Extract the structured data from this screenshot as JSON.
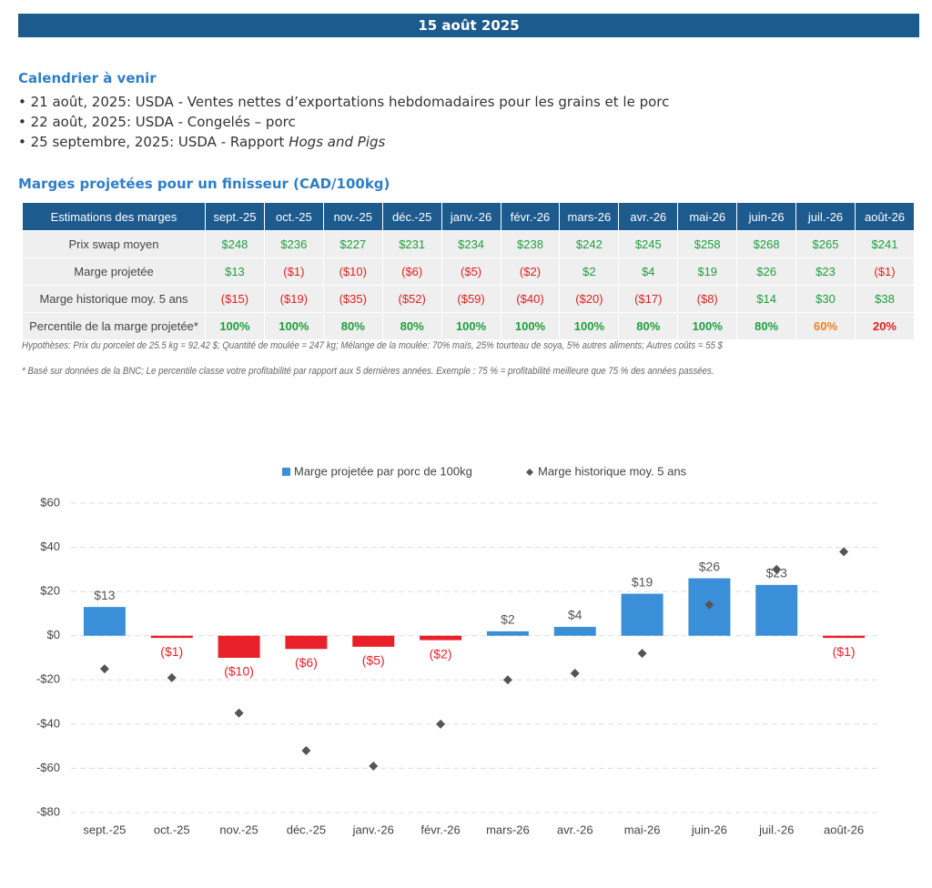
{
  "header": {
    "date": "15 août 2025"
  },
  "calendar": {
    "title": "Calendrier à venir",
    "items": [
      {
        "text": "21 août, 2025: USDA - Ventes nettes d’exportations hebdomadaires pour les grains et le porc"
      },
      {
        "text": "22 août, 2025: USDA - Congelés – porc"
      },
      {
        "text": "25 septembre, 2025: USDA - Rapport ",
        "italic": "Hogs and Pigs"
      }
    ]
  },
  "table": {
    "title": "Marges projetées pour un finisseur (CAD/100kg)",
    "header": [
      "Estimations des marges",
      "sept.-25",
      "oct.-25",
      "nov.-25",
      "déc.-25",
      "janv.-26",
      "févr.-26",
      "mars-26",
      "avr.-26",
      "mai-26",
      "juin-26",
      "juil.-26",
      "août-26"
    ],
    "rows": [
      [
        "Prix swap moyen",
        "$248",
        "$236",
        "$227",
        "$231",
        "$234",
        "$238",
        "$242",
        "$245",
        "$258",
        "$268",
        "$265",
        "$241"
      ],
      [
        "Marge projetée",
        "$13",
        "($1)",
        "($10)",
        "($6)",
        "($5)",
        "($2)",
        "$2",
        "$4",
        "$19",
        "$26",
        "$23",
        "($1)"
      ],
      [
        "Marge historique moy. 5 ans",
        "($15)",
        "($19)",
        "($35)",
        "($52)",
        "($59)",
        "($40)",
        "($20)",
        "($17)",
        "($8)",
        "$14",
        "$30",
        "$38"
      ],
      [
        "Percentile de la marge projetée*",
        "100%",
        "100%",
        "80%",
        "80%",
        "100%",
        "100%",
        "100%",
        "80%",
        "100%",
        "80%",
        "60%",
        "20%"
      ]
    ],
    "colors": [
      [
        "#1e9e3e",
        "#1e9e3e",
        "#1e9e3e",
        "#1e9e3e",
        "#1e9e3e",
        "#1e9e3e",
        "#1e9e3e",
        "#1e9e3e",
        "#1e9e3e",
        "#1e9e3e",
        "#1e9e3e",
        "#1e9e3e"
      ],
      [
        "#1e9e3e",
        "#e02020",
        "#e02020",
        "#e02020",
        "#e02020",
        "#e02020",
        "#1e9e3e",
        "#1e9e3e",
        "#1e9e3e",
        "#1e9e3e",
        "#1e9e3e",
        "#e02020"
      ],
      [
        "#e02020",
        "#e02020",
        "#e02020",
        "#e02020",
        "#e02020",
        "#e02020",
        "#e02020",
        "#e02020",
        "#e02020",
        "#1e9e3e",
        "#1e9e3e",
        "#1e9e3e"
      ],
      [
        "#1e9e3e",
        "#1e9e3e",
        "#1e9e3e",
        "#1e9e3e",
        "#1e9e3e",
        "#1e9e3e",
        "#1e9e3e",
        "#1e9e3e",
        "#1e9e3e",
        "#1e9e3e",
        "#f08020",
        "#e02020"
      ]
    ]
  },
  "notes": [
    "Hypothèses: Prix du porcelet de 25.5 kg = 92.42 $; Quantité de moulée = 247 kg; Mélange de la moulée: 70% maïs, 25% tourteau de soya, 5% autres aliments; Autres coûts = 55 $",
    "* Basé sur données de la BNC; Le percentile classe votre profitabilité par rapport aux 5 dernières années. Exemple : 75 % = profitabilité meilleure que 75 % des années passées."
  ],
  "chart_data": {
    "type": "bar",
    "categories": [
      "sept.-25",
      "oct.-25",
      "nov.-25",
      "déc.-25",
      "janv.-26",
      "févr.-26",
      "mars-26",
      "avr.-26",
      "mai-26",
      "juin-26",
      "juil.-26",
      "août-26"
    ],
    "series": [
      {
        "name": "Marge projetée par porc de 100kg",
        "type": "bar",
        "color": "#3a8fd8",
        "negative_color": "#e8202a",
        "values": [
          13,
          -1,
          -10,
          -6,
          -5,
          -2,
          2,
          4,
          19,
          26,
          23,
          -1
        ],
        "value_labels": [
          "$13",
          "($1)",
          "($10)",
          "($6)",
          "($5)",
          "($2)",
          "$2",
          "$4",
          "$19",
          "$26",
          "$23",
          "($1)"
        ]
      },
      {
        "name": "Marge historique moy. 5 ans",
        "type": "scatter",
        "color": "#555555",
        "values": [
          -15,
          -19,
          -35,
          -52,
          -59,
          -40,
          -20,
          -17,
          -8,
          14,
          30,
          38
        ]
      }
    ],
    "ylim": [
      -80,
      60
    ],
    "yticks": [
      {
        "value": -80,
        "label": "-$80"
      },
      {
        "value": -60,
        "label": "-$60"
      },
      {
        "value": -40,
        "label": "-$40"
      },
      {
        "value": -20,
        "label": "-$20"
      },
      {
        "value": 0,
        "label": "$0"
      },
      {
        "value": 20,
        "label": "$20"
      },
      {
        "value": 40,
        "label": "$40"
      },
      {
        "value": 60,
        "label": "$60"
      }
    ],
    "grid": true,
    "legend": "top"
  }
}
